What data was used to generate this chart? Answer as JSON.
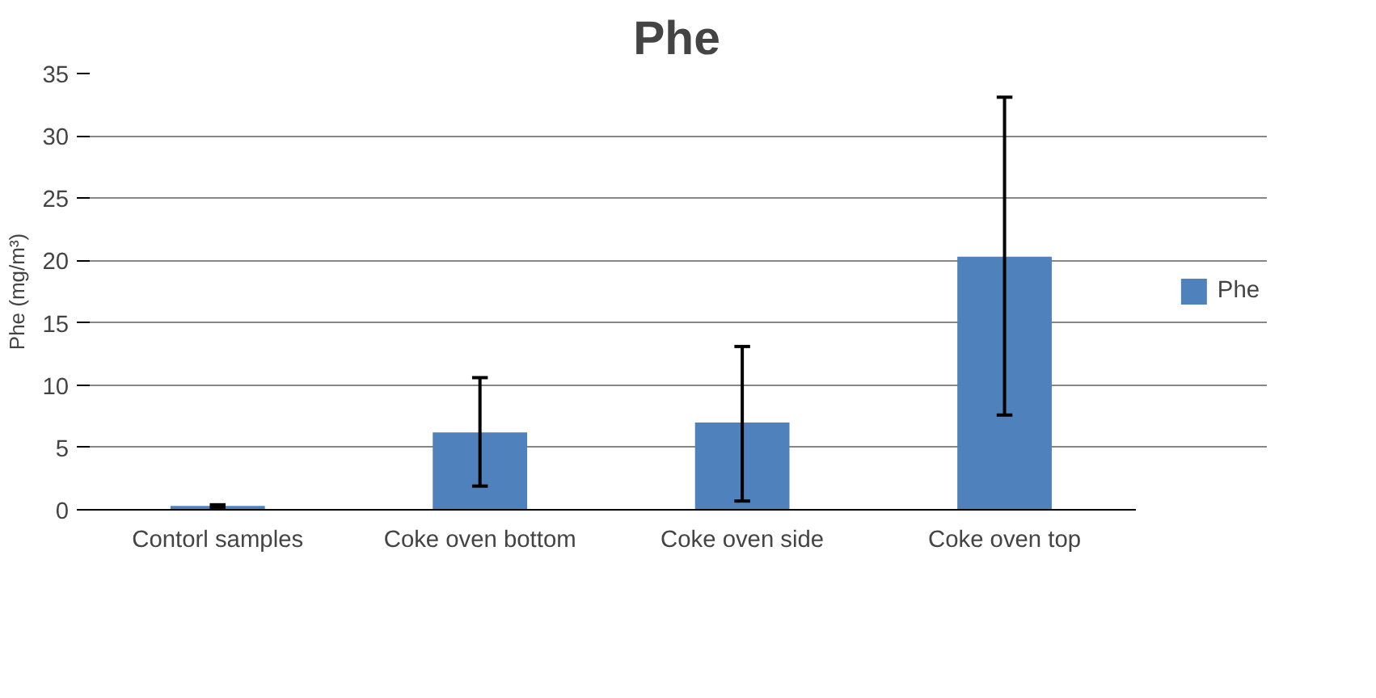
{
  "chart_data": {
    "type": "bar",
    "title": "Phe",
    "ylabel": "Phe (mg/m³)",
    "categories": [
      "Contorl samples",
      "Coke oven bottom",
      "Coke oven side",
      "Coke oven top"
    ],
    "series": [
      {
        "name": "Phe",
        "color": "#4f81bd",
        "values": [
          0.3,
          6.2,
          7.0,
          20.3
        ],
        "errors": [
          [
            0.2,
            0.4
          ],
          [
            1.9,
            10.6
          ],
          [
            0.7,
            13.1
          ],
          [
            7.6,
            33.1
          ]
        ]
      }
    ],
    "ylim": [
      0,
      35
    ],
    "yticks": [
      0,
      5,
      10,
      15,
      20,
      25,
      30,
      35
    ],
    "grid": "y",
    "legend": "right"
  }
}
